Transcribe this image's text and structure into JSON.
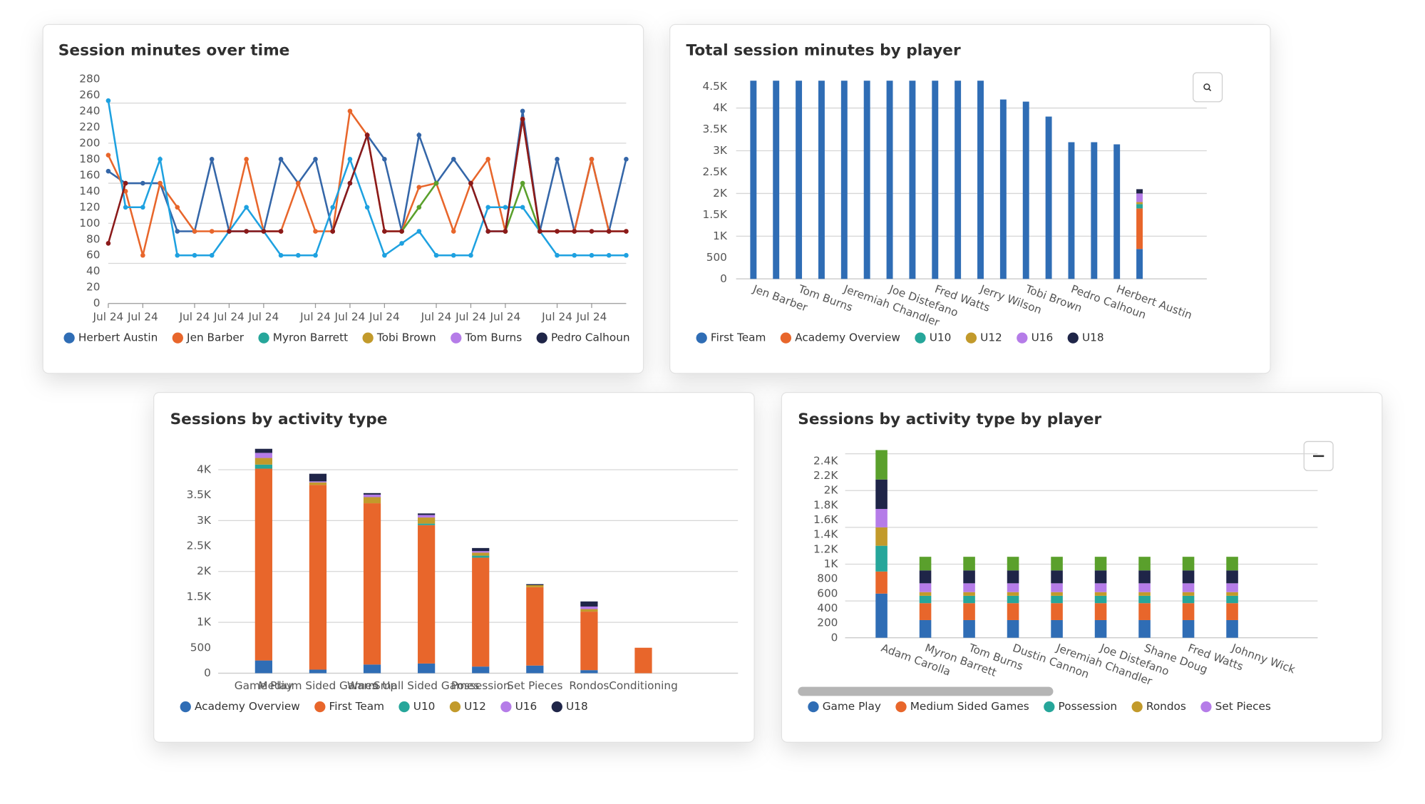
{
  "chart_data": [
    {
      "type": "line",
      "title": "Session minutes over time",
      "categories": [
        "Jul 24",
        null,
        "Jul 24",
        null,
        null,
        "Jul 24",
        null,
        "Jul 24",
        null,
        "Jul 24",
        null,
        null,
        "Jul 24",
        null,
        "Jul 24",
        null,
        "Jul 24",
        null,
        null,
        "Jul 24",
        null,
        "Jul 24",
        null,
        "Jul 24",
        null,
        null,
        "Jul 24",
        null,
        "Jul 24",
        null,
        null
      ],
      "series": [
        {
          "name": "Herbert Austin",
          "color": "#2f6db5",
          "line_color": "#3466a8",
          "values": [
            165,
            150,
            150,
            150,
            90,
            90,
            180,
            90,
            90,
            90,
            180,
            150,
            180,
            90,
            150,
            210,
            180,
            90,
            210,
            150,
            180,
            150,
            90,
            90,
            240,
            90,
            180,
            90,
            180,
            90,
            180
          ]
        },
        {
          "name": "Jen Barber",
          "color": "#e8662b",
          "line_color": "#e8662b",
          "values": [
            185,
            140,
            60,
            150,
            120,
            90,
            90,
            90,
            180,
            90,
            90,
            150,
            90,
            90,
            240,
            210,
            90,
            90,
            145,
            150,
            90,
            150,
            180,
            90,
            230,
            90,
            90,
            90,
            180,
            90,
            90
          ]
        },
        {
          "name": "Myron Barrett",
          "color": "#26a69a",
          "line_color": "#1ea1e0",
          "values": [
            253,
            120,
            120,
            180,
            60,
            60,
            60,
            90,
            120,
            90,
            60,
            60,
            60,
            120,
            180,
            120,
            60,
            75,
            90,
            60,
            60,
            60,
            120,
            120,
            120,
            90,
            60,
            60,
            60,
            60,
            60
          ]
        },
        {
          "name": "Tobi Brown",
          "color": "#c29a2b",
          "line_color": "#5aa02c",
          "values": [
            null,
            null,
            null,
            null,
            null,
            null,
            null,
            null,
            null,
            null,
            null,
            null,
            null,
            null,
            null,
            null,
            null,
            90,
            120,
            150,
            null,
            null,
            null,
            90,
            150,
            90,
            null,
            null,
            null,
            null,
            null
          ]
        },
        {
          "name": "Tom Burns",
          "color": "#b57ce8",
          "values": [
            null,
            null,
            null,
            null,
            null,
            null,
            null,
            null,
            null,
            null,
            null,
            null,
            null,
            null,
            null,
            null,
            null,
            null,
            null,
            null,
            null,
            null,
            null,
            null,
            null,
            null,
            null,
            null,
            null,
            null,
            null
          ]
        },
        {
          "name": "Pedro Calhoun",
          "color": "#1f2548",
          "line_color": "#8b1a1a",
          "values": [
            75,
            150,
            null,
            null,
            null,
            null,
            null,
            90,
            90,
            90,
            90,
            null,
            null,
            90,
            150,
            210,
            90,
            90,
            null,
            null,
            null,
            150,
            90,
            90,
            230,
            90,
            90,
            90,
            90,
            90,
            90
          ]
        }
      ],
      "ylim": [
        0,
        280
      ],
      "yticks": [
        0,
        20,
        40,
        60,
        80,
        100,
        120,
        140,
        160,
        180,
        200,
        220,
        240,
        260,
        280
      ],
      "grid_lines": [
        50,
        100,
        150,
        200,
        250
      ]
    },
    {
      "type": "bar",
      "title": "Total session minutes by player",
      "categories": [
        "Jen Barber",
        null,
        "Tom Burns",
        null,
        "Jeremiah Chandler",
        null,
        "Joe Distefano",
        null,
        "Fred Watts",
        null,
        "Jerry Wilson",
        null,
        "Tobi Brown",
        null,
        "Pedro Calhoun",
        null,
        "Herbert Austin",
        null
      ],
      "series": [
        {
          "name": "First Team",
          "color": "#2f6db5",
          "values": [
            4640,
            4640,
            4640,
            4640,
            4640,
            4640,
            4640,
            4640,
            4640,
            4640,
            4640,
            4200,
            4150,
            3800,
            3200,
            3200,
            3150,
            700
          ]
        },
        {
          "name": "Academy Overview",
          "color": "#e8662b",
          "values": [
            null,
            null,
            null,
            null,
            null,
            null,
            null,
            null,
            null,
            null,
            null,
            null,
            null,
            null,
            null,
            null,
            null,
            950
          ]
        },
        {
          "name": "U10",
          "color": "#26a69a",
          "values": [
            null,
            null,
            null,
            null,
            null,
            null,
            null,
            null,
            null,
            null,
            null,
            null,
            null,
            null,
            null,
            null,
            null,
            100
          ]
        },
        {
          "name": "U12",
          "color": "#c29a2b",
          "values": [
            null,
            null,
            null,
            null,
            null,
            null,
            null,
            null,
            null,
            null,
            null,
            null,
            null,
            null,
            null,
            null,
            null,
            50
          ]
        },
        {
          "name": "U16",
          "color": "#b57ce8",
          "values": [
            null,
            null,
            null,
            null,
            null,
            null,
            null,
            null,
            null,
            null,
            null,
            null,
            null,
            null,
            null,
            null,
            null,
            200
          ]
        },
        {
          "name": "U18",
          "color": "#1f2548",
          "values": [
            null,
            null,
            null,
            null,
            null,
            null,
            null,
            null,
            null,
            null,
            null,
            null,
            null,
            null,
            null,
            null,
            null,
            100
          ]
        }
      ],
      "ylim": [
        0,
        4700
      ],
      "yticks": [
        0,
        500,
        {
          "value": 1000,
          "label": "1K"
        },
        {
          "value": 1500,
          "label": "1.5K"
        },
        {
          "value": 2000,
          "label": "2K"
        },
        {
          "value": 2500,
          "label": "2.5K"
        },
        {
          "value": 3000,
          "label": "3K"
        },
        {
          "value": 3500,
          "label": "3.5K"
        },
        {
          "value": 4000,
          "label": "4K"
        },
        {
          "value": 4500,
          "label": "4.5K"
        }
      ],
      "grid_lines": [
        0,
        1000,
        2000,
        3000,
        4000
      ],
      "stacked": true
    },
    {
      "type": "bar",
      "title": "Sessions by activity type",
      "categories": [
        "Game Play",
        "Medium Sided Games",
        "Warm Up",
        "Small Sided Games",
        "Possession",
        "Set Pieces",
        "Rondos",
        "Conditioning"
      ],
      "series": [
        {
          "name": "Academy Overview",
          "color": "#2f6db5",
          "values": [
            250,
            70,
            170,
            190,
            130,
            150,
            60,
            null
          ]
        },
        {
          "name": "First Team",
          "color": "#e8662b",
          "values": [
            3770,
            3630,
            3170,
            2720,
            2140,
            1540,
            1150,
            500
          ]
        },
        {
          "name": "U10",
          "color": "#26a69a",
          "values": [
            80,
            null,
            null,
            30,
            40,
            null,
            null,
            null
          ]
        },
        {
          "name": "U12",
          "color": "#c29a2b",
          "values": [
            130,
            50,
            120,
            120,
            60,
            40,
            50,
            null
          ]
        },
        {
          "name": "U16",
          "color": "#b57ce8",
          "values": [
            100,
            20,
            50,
            50,
            30,
            null,
            50,
            null
          ]
        },
        {
          "name": "U18",
          "color": "#1f2548",
          "values": [
            80,
            150,
            30,
            30,
            60,
            20,
            100,
            null
          ]
        }
      ],
      "ylim": [
        0,
        4500
      ],
      "yticks": [
        0,
        500,
        {
          "value": 1000,
          "label": "1K"
        },
        {
          "value": 1500,
          "label": "1.5K"
        },
        {
          "value": 2000,
          "label": "2K"
        },
        {
          "value": 2500,
          "label": "2.5K"
        },
        {
          "value": 3000,
          "label": "3K"
        },
        {
          "value": 3500,
          "label": "3.5K"
        },
        {
          "value": 4000,
          "label": "4K"
        }
      ],
      "grid_lines": [
        0,
        1000,
        2000,
        3000,
        4000
      ],
      "stacked": true
    },
    {
      "type": "bar",
      "title": "Sessions by activity type by player",
      "categories": [
        "Adam Carolla",
        "Myron Barrett",
        "Tom Burns",
        "Dustin Cannon",
        "Jeremiah Chandler",
        "Joe Distefano",
        "Shane Doug",
        "Fred Watts",
        "Johnny Wick"
      ],
      "series": [
        {
          "name": "Game Play",
          "color": "#2f6db5",
          "values": [
            600,
            240,
            240,
            240,
            240,
            240,
            240,
            240,
            240
          ]
        },
        {
          "name": "Medium Sided Games",
          "color": "#e8662b",
          "values": [
            300,
            230,
            230,
            230,
            230,
            230,
            230,
            230,
            230
          ]
        },
        {
          "name": "Possession",
          "color": "#26a69a",
          "values": [
            350,
            100,
            100,
            100,
            100,
            100,
            100,
            100,
            100
          ]
        },
        {
          "name": "Rondos",
          "color": "#c29a2b",
          "values": [
            250,
            50,
            50,
            50,
            50,
            50,
            50,
            50,
            50
          ]
        },
        {
          "name": "Set Pieces",
          "color": "#b57ce8",
          "values": [
            250,
            120,
            120,
            120,
            120,
            120,
            120,
            120,
            120
          ]
        },
        {
          "color": "#1f2548",
          "values": [
            400,
            175,
            175,
            175,
            175,
            175,
            175,
            175,
            175
          ]
        },
        {
          "color": "#5aa02c",
          "values": [
            400,
            185,
            185,
            185,
            185,
            185,
            185,
            185,
            185
          ]
        }
      ],
      "ylim": [
        0,
        2560
      ],
      "yticks": [
        0,
        200,
        400,
        600,
        800,
        {
          "value": 1000,
          "label": "1K"
        },
        {
          "value": 1200,
          "label": "1.2K"
        },
        {
          "value": 1400,
          "label": "1.4K"
        },
        {
          "value": 1600,
          "label": "1.6K"
        },
        {
          "value": 1800,
          "label": "1.8K"
        },
        {
          "value": 2000,
          "label": "2K"
        },
        {
          "value": 2200,
          "label": "2.2K"
        },
        {
          "value": 2400,
          "label": "2.4K"
        }
      ],
      "grid_lines": [
        0,
        500,
        1000,
        1500,
        2000,
        2500
      ],
      "stacked": true
    }
  ]
}
